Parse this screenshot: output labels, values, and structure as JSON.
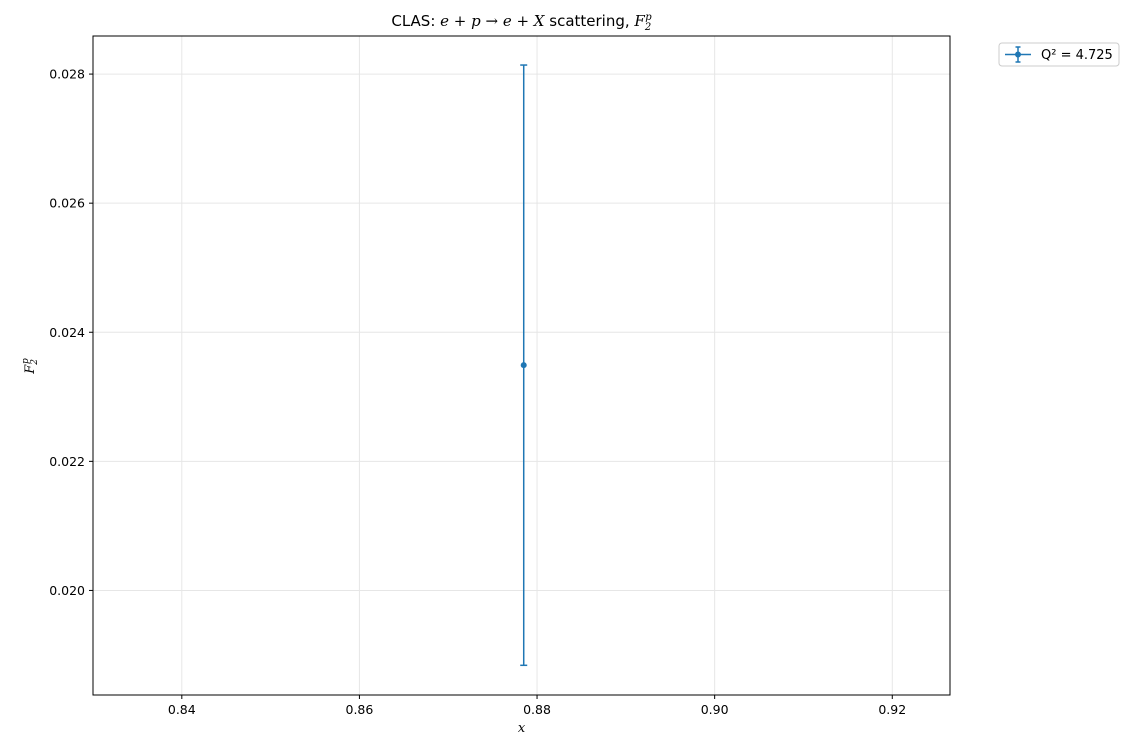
{
  "chart_data": {
    "type": "scatter",
    "title": {
      "prefix": "CLAS: ",
      "math_1": "e + p → e + X",
      "middle": " scattering, ",
      "math_2": "F",
      "math_2_sub": "2",
      "math_2_sup": "p"
    },
    "xlabel": "x",
    "ylabel": {
      "base": "F",
      "sub": "2",
      "sup": "p"
    },
    "xlim": [
      0.83,
      0.9265
    ],
    "ylim": [
      0.01838,
      0.02859
    ],
    "xticks": [
      0.84,
      0.86,
      0.88,
      0.9,
      0.92
    ],
    "xtick_labels": [
      "0.84",
      "0.86",
      "0.88",
      "0.90",
      "0.92"
    ],
    "yticks": [
      0.02,
      0.022,
      0.024,
      0.026,
      0.028
    ],
    "ytick_labels": [
      "0.020",
      "0.022",
      "0.024",
      "0.026",
      "0.028"
    ],
    "grid": true,
    "legend_position": "outside-top-right",
    "series": [
      {
        "name": "Q² = 4.725",
        "color": "#1f77b4",
        "points": [
          {
            "x": 0.8785,
            "y": 0.02349,
            "yerr": 0.00465
          }
        ]
      }
    ]
  }
}
